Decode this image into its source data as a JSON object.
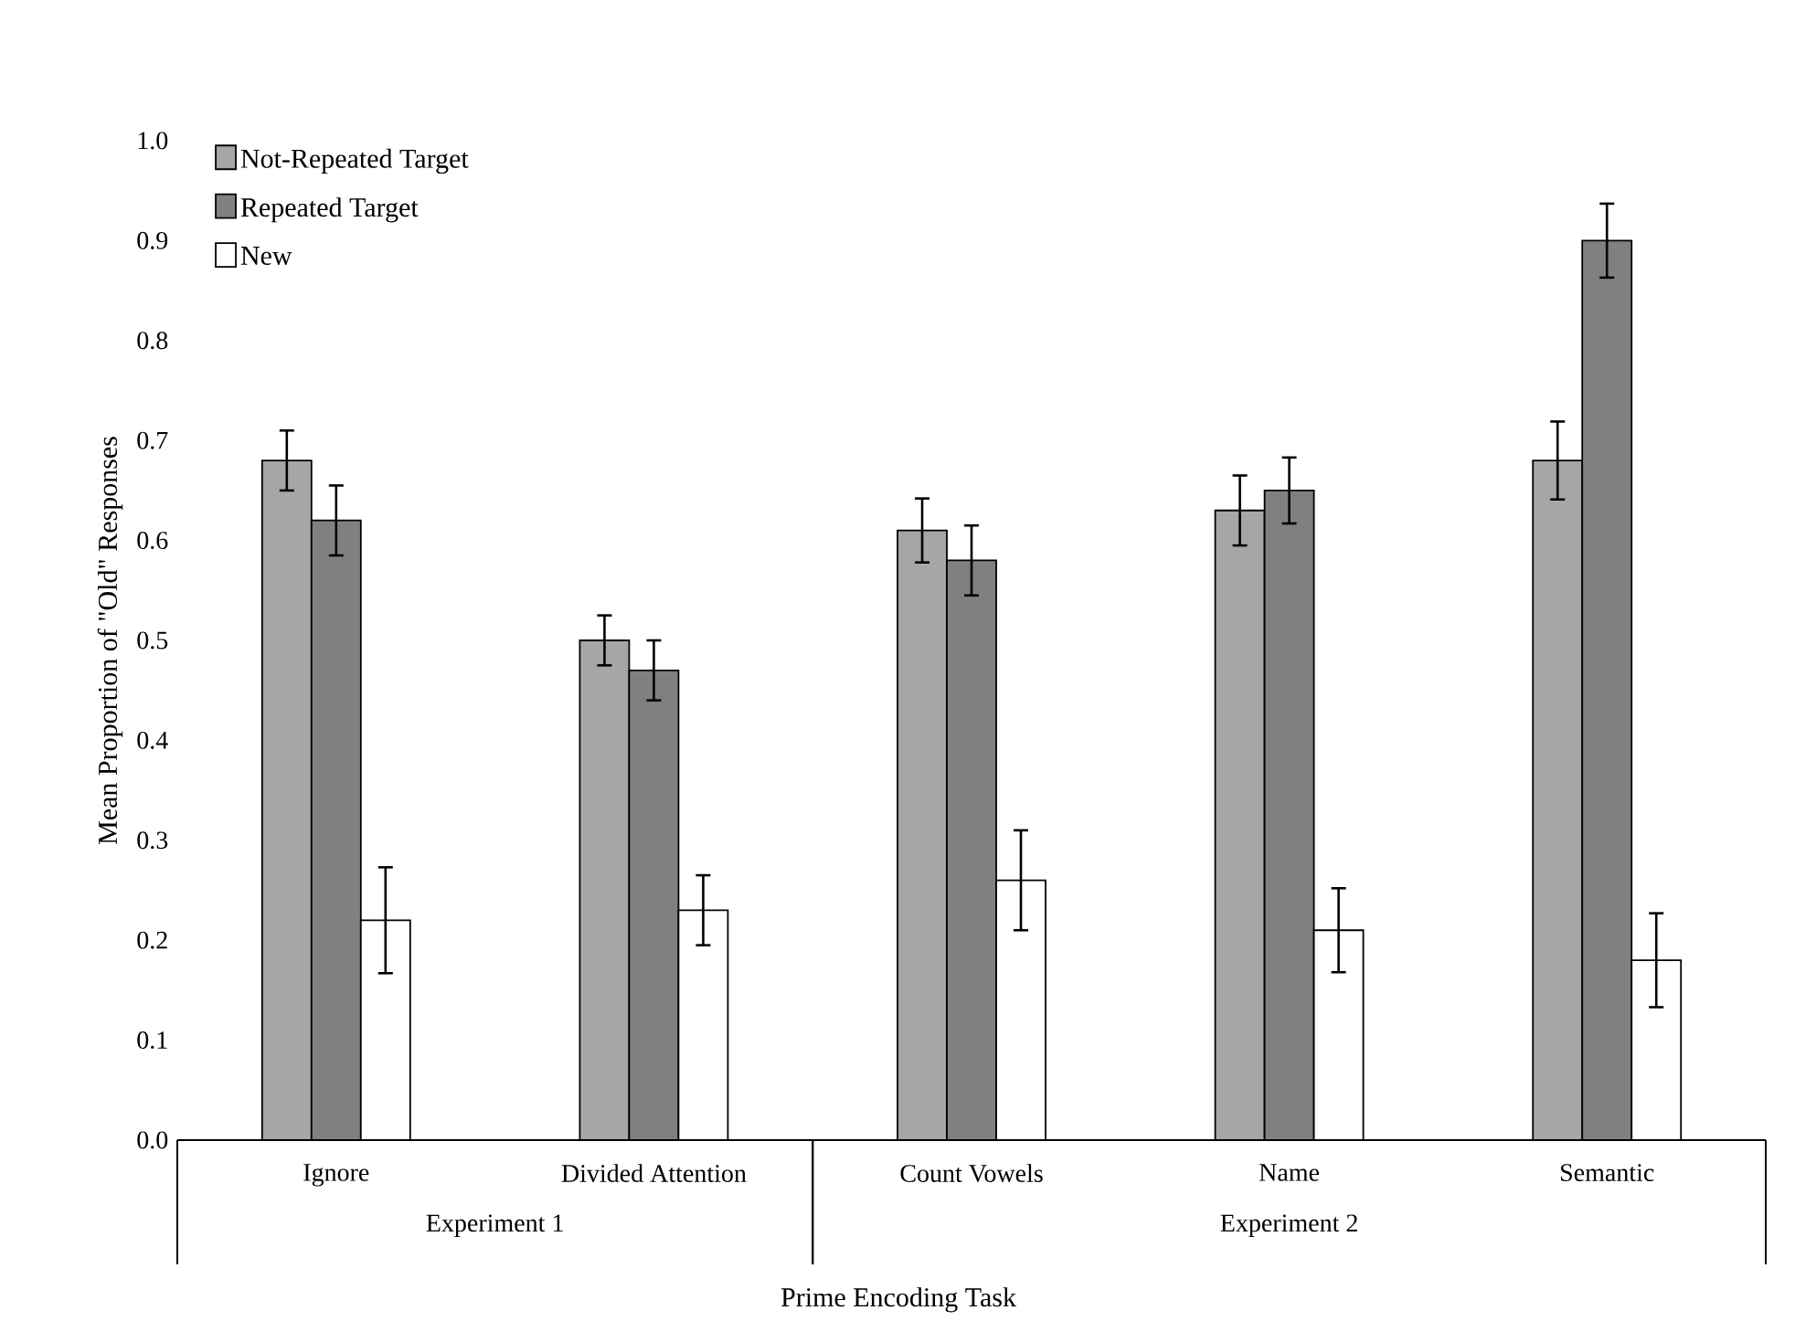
{
  "chart_data": {
    "type": "bar",
    "xlabel": "Prime Encoding Task",
    "ylabel": "Mean Proportion of \"Old\" Responses",
    "categories": [
      "Ignore",
      "Divided Attention",
      "Count Vowels",
      "Name",
      "Semantic"
    ],
    "series": [
      {
        "name": "Not-Repeated Target",
        "color": "#a6a6a6",
        "values": [
          0.68,
          0.5,
          0.61,
          0.63,
          0.68
        ],
        "errors": [
          0.03,
          0.025,
          0.032,
          0.035,
          0.039
        ]
      },
      {
        "name": "Repeated Target",
        "color": "#808080",
        "values": [
          0.62,
          0.47,
          0.58,
          0.65,
          0.9
        ],
        "errors": [
          0.035,
          0.03,
          0.035,
          0.033,
          0.037
        ]
      },
      {
        "name": "New",
        "color": "#ffffff",
        "values": [
          0.22,
          0.23,
          0.26,
          0.21,
          0.18
        ],
        "errors": [
          0.053,
          0.035,
          0.05,
          0.042,
          0.047
        ]
      }
    ],
    "annotations": [
      "Experiment 1",
      "Experiment 2"
    ],
    "ylim": [
      0,
      1
    ],
    "yticks": [
      {
        "value": 0,
        "label": "0.0"
      },
      {
        "value": 0.1,
        "label": "0.1"
      },
      {
        "value": 0.2,
        "label": "0.2"
      },
      {
        "value": 0.3,
        "label": "0.3"
      },
      {
        "value": 0.4,
        "label": "0.4"
      },
      {
        "value": 0.5,
        "label": "0.5"
      },
      {
        "value": 0.6,
        "label": "0.6"
      },
      {
        "value": 0.7,
        "label": "0.7"
      },
      {
        "value": 0.8,
        "label": "0.8"
      },
      {
        "value": 0.9,
        "label": "0.9"
      },
      {
        "value": 1.0,
        "label": "1.0"
      }
    ],
    "legend": "top left",
    "grid": false
  }
}
